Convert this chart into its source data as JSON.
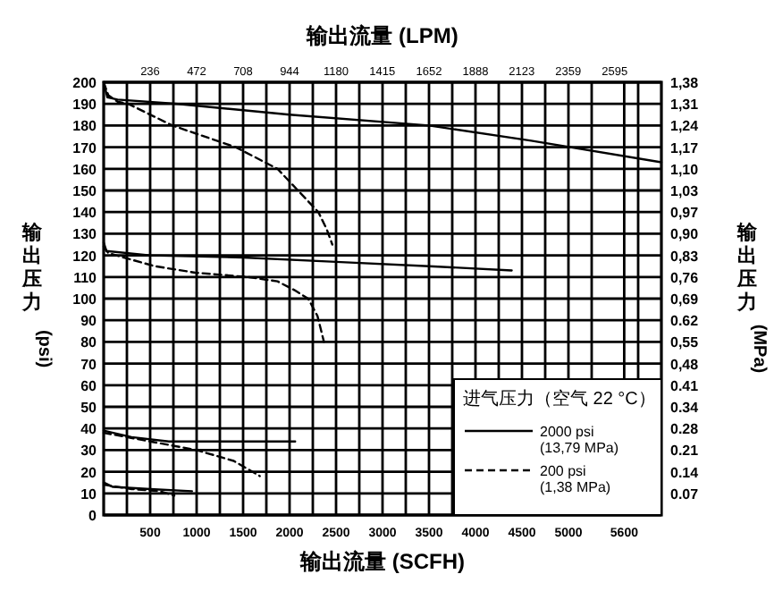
{
  "chart_data": {
    "type": "line",
    "x2label": "输出流量 (LPM)",
    "xlabel": "输出流量 (SCFH)",
    "ylabel": "输出压力 (psi)",
    "y2label": "输出压力 (MPa)",
    "legend_title": "进气压力（空气 22 °C）",
    "xlim": [
      0,
      6000
    ],
    "xticks": [
      {
        "value": 250,
        "label": null
      },
      500,
      {
        "value": 750,
        "label": null
      },
      1000,
      {
        "value": 1250,
        "label": null
      },
      1500,
      {
        "value": 1750,
        "label": null
      },
      2000,
      {
        "value": 2250,
        "label": null
      },
      2500,
      {
        "value": 2750,
        "label": null
      },
      3000,
      {
        "value": 3250,
        "label": null
      },
      3500,
      {
        "value": 3750,
        "label": null
      },
      4000,
      {
        "value": 4250,
        "label": null
      },
      4500,
      {
        "value": 4750,
        "label": null
      },
      5000,
      {
        "value": 5250,
        "label": null
      },
      5600,
      {
        "value": 5750,
        "label": null
      }
    ],
    "x2lim": [
      0,
      2832
    ],
    "x2ticks": [
      236,
      472,
      708,
      944,
      1180,
      1415,
      1652,
      1888,
      2123,
      2359,
      2595
    ],
    "ylim": [
      0,
      200
    ],
    "yticks": [
      0,
      10,
      20,
      30,
      40,
      50,
      60,
      70,
      80,
      90,
      100,
      110,
      120,
      130,
      140,
      150,
      160,
      170,
      180,
      190,
      200
    ],
    "y2lim": [
      0,
      1.38
    ],
    "y2ticks": [
      {
        "value": 0.069,
        "label": "0.07"
      },
      {
        "value": 0.138,
        "label": "0.14"
      },
      {
        "value": 0.207,
        "label": "0.21"
      },
      {
        "value": 0.276,
        "label": "0.28"
      },
      {
        "value": 0.345,
        "label": "0.34"
      },
      {
        "value": 0.414,
        "label": "0.41"
      },
      {
        "value": 0.483,
        "label": "0,48"
      },
      {
        "value": 0.552,
        "label": "0,55"
      },
      {
        "value": 0.621,
        "label": "0.62"
      },
      {
        "value": 0.69,
        "label": "0,69"
      },
      {
        "value": 0.759,
        "label": "0,76"
      },
      {
        "value": 0.828,
        "label": "0,83"
      },
      {
        "value": 0.897,
        "label": "0,90"
      },
      {
        "value": 0.966,
        "label": "0,97"
      },
      {
        "value": 1.035,
        "label": "1,03"
      },
      {
        "value": 1.104,
        "label": "1,10"
      },
      {
        "value": 1.173,
        "label": "1,17"
      },
      {
        "value": 1.242,
        "label": "1,24"
      },
      {
        "value": 1.311,
        "label": "1,31"
      },
      {
        "value": 1.38,
        "label": "1,38"
      }
    ],
    "grid": true,
    "legend": "bottom right",
    "marker": "none",
    "series": [
      {
        "name": "2000 psi (13,79 MPa)",
        "color": "#000000",
        "line_style": "solid",
        "x": [
          0,
          40,
          150,
          800,
          2000,
          3500,
          4600,
          6000
        ],
        "values": [
          200,
          193,
          192,
          190,
          185,
          180,
          173,
          163
        ]
      },
      {
        "name": "200 psi (1,38 MPa)",
        "color": "#000000",
        "line_style": "dashed",
        "x": [
          0,
          50,
          150,
          265,
          740,
          1420,
          1870,
          2090,
          2310,
          2400,
          2460
        ],
        "values": [
          200,
          194,
          191,
          190,
          180,
          170,
          160,
          150,
          140,
          132,
          125
        ]
      },
      {
        "color": "#000000",
        "line_style": "solid",
        "x": [
          0,
          30,
          500,
          1500,
          2500,
          3500,
          4390
        ],
        "values": [
          126,
          122,
          120,
          119,
          117,
          115,
          113
        ]
      },
      {
        "color": "#000000",
        "line_style": "dashed",
        "x": [
          0,
          50,
          550,
          985,
          1550,
          1870,
          2050,
          2200,
          2300,
          2370
        ],
        "values": [
          124,
          121,
          115,
          112,
          110,
          108,
          104,
          100,
          92,
          80
        ]
      },
      {
        "color": "#000000",
        "line_style": "solid",
        "x": [
          0,
          300,
          700,
          1200,
          2060
        ],
        "values": [
          39,
          36,
          34,
          34,
          34
        ]
      },
      {
        "color": "#000000",
        "line_style": "dashed",
        "x": [
          0,
          500,
          1000,
          1400,
          1680
        ],
        "values": [
          38,
          34,
          30,
          25,
          18
        ]
      },
      {
        "color": "#000000",
        "line_style": "solid",
        "x": [
          0,
          100,
          500,
          950
        ],
        "values": [
          15,
          13,
          12,
          11
        ]
      },
      {
        "color": "#000000",
        "line_style": "dashed",
        "x": [
          0,
          300,
          600,
          760
        ],
        "values": [
          14,
          12,
          11,
          9
        ]
      }
    ]
  }
}
